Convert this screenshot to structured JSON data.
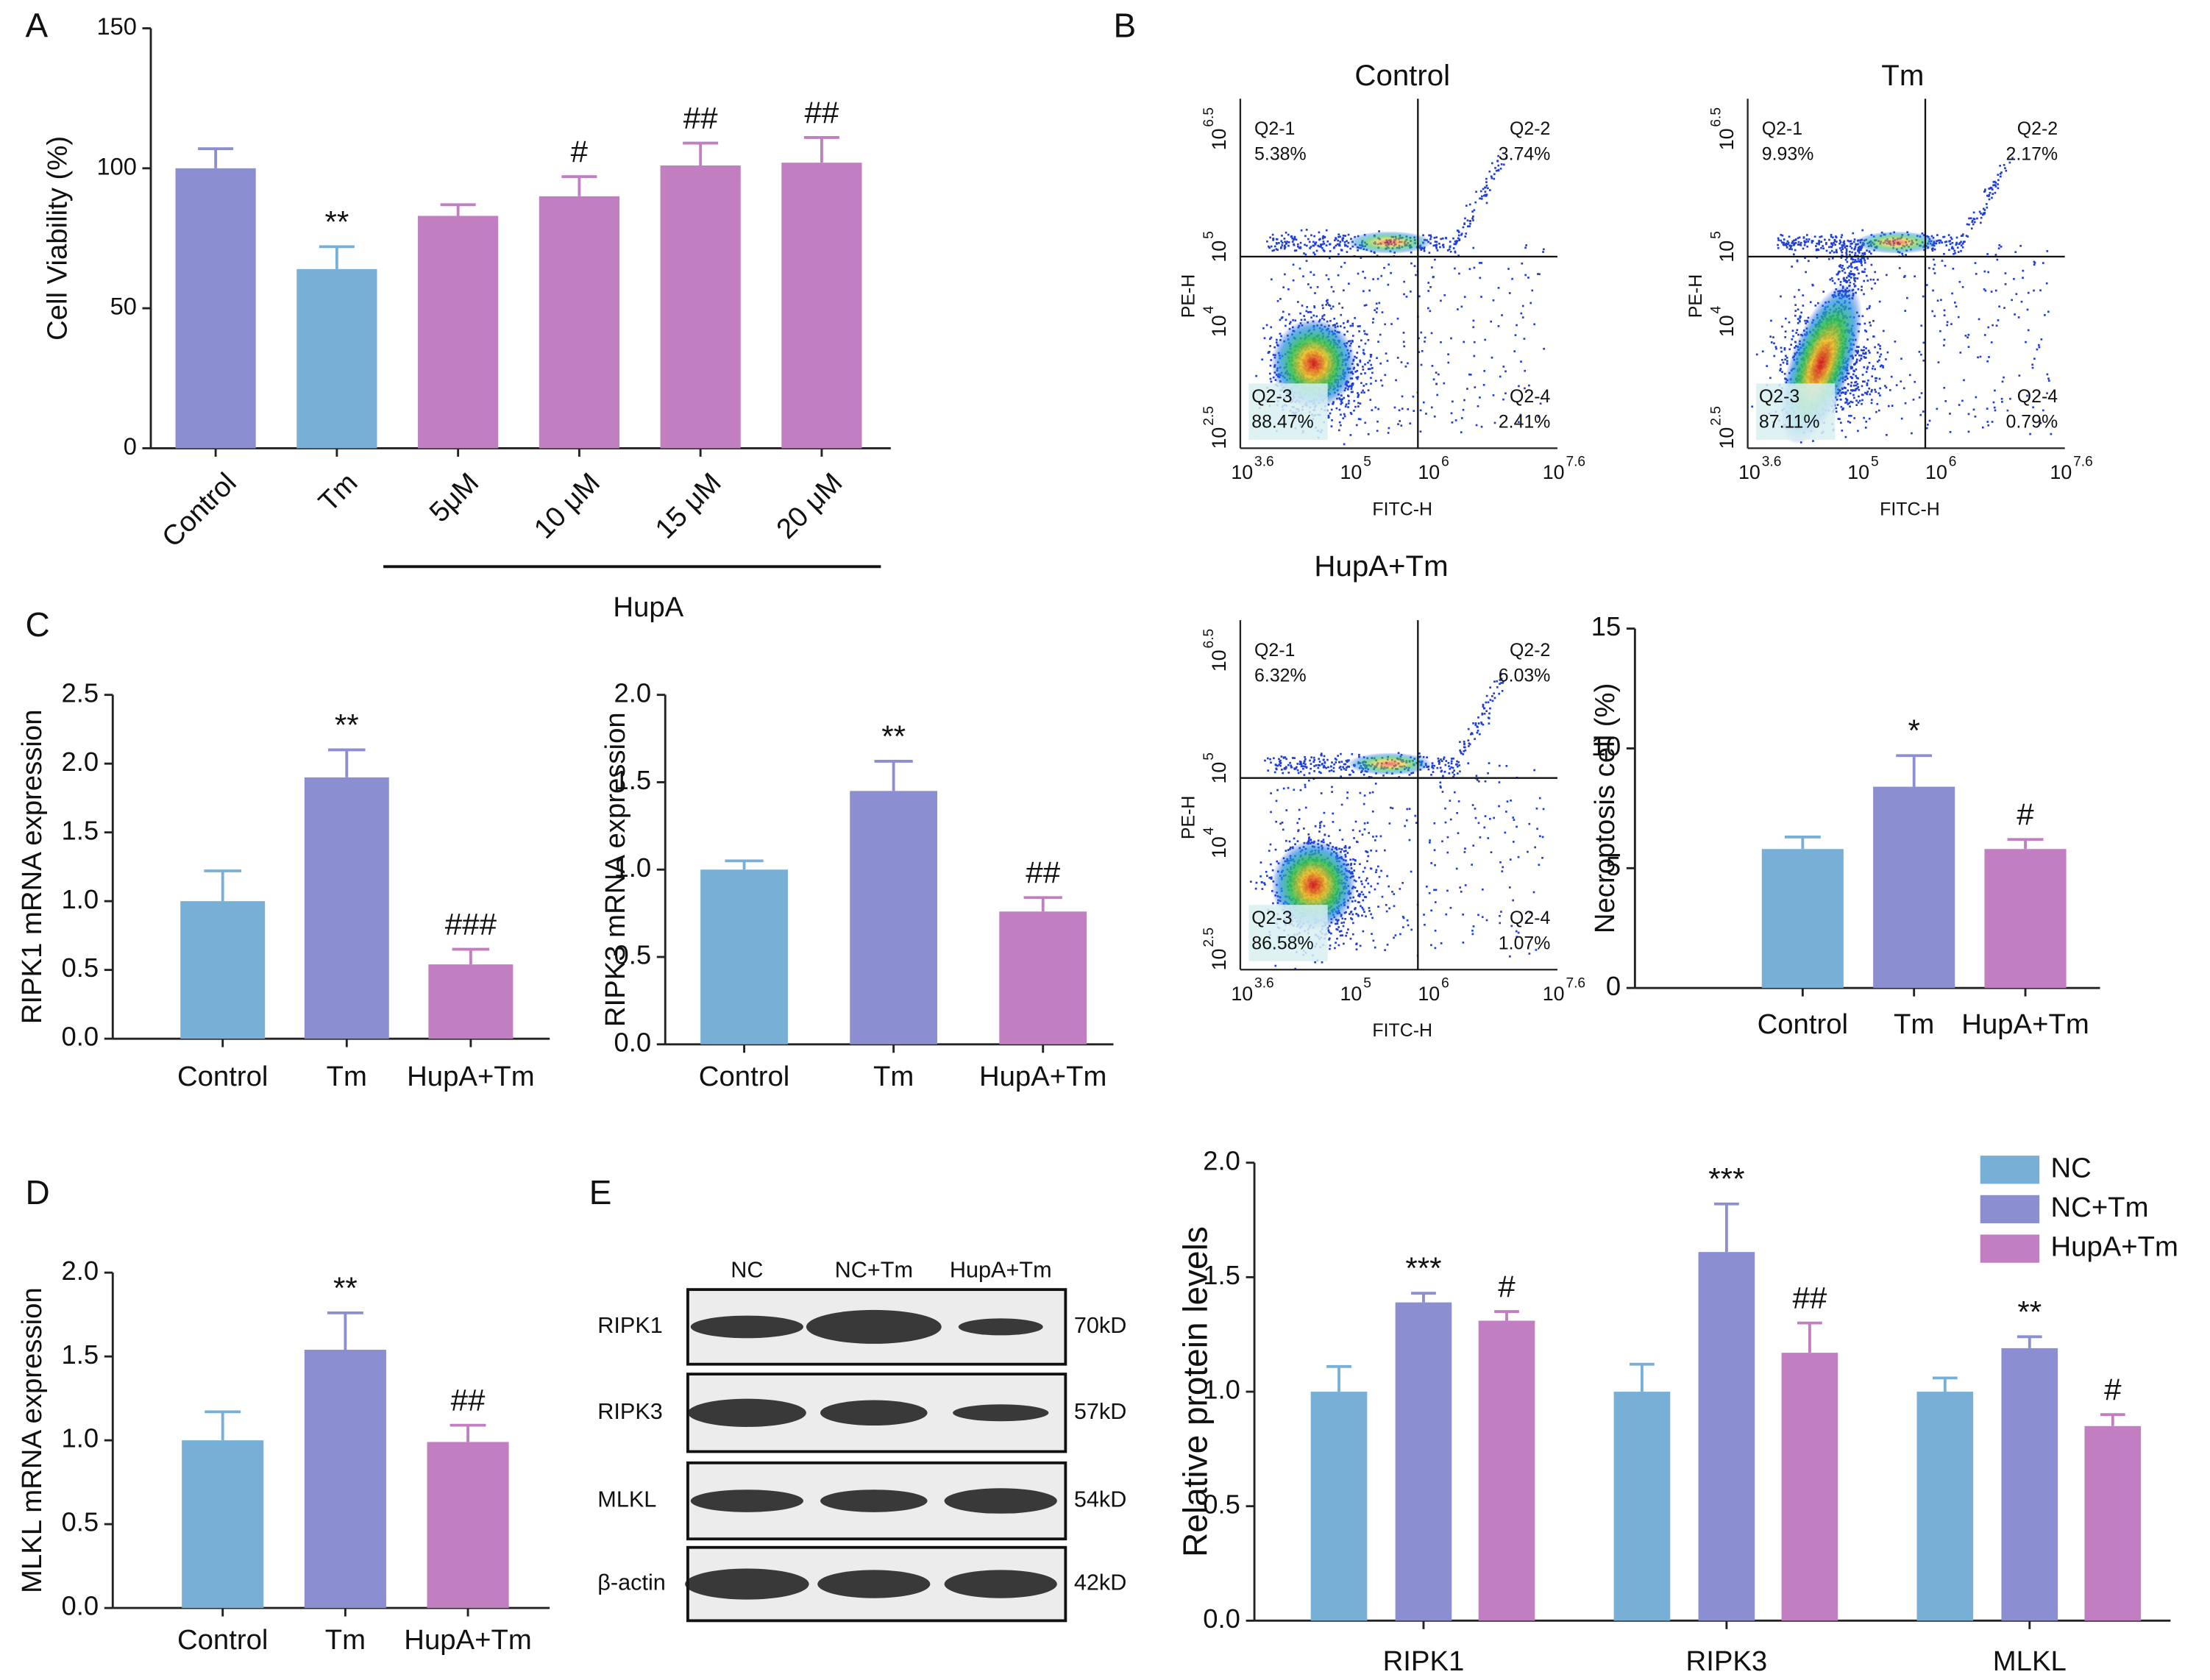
{
  "panel_labels": [
    "A",
    "B",
    "C",
    "D",
    "E"
  ],
  "chart_data": [
    {
      "type": "bar",
      "ylabel": "Cell Viability (%)",
      "group_label": "HupA",
      "categories": [
        "Control",
        "Tm",
        "5μM",
        "10 μM",
        "15 μM",
        "20 μM"
      ],
      "values": [
        100,
        64,
        83,
        90,
        101,
        102
      ],
      "errors": [
        7,
        8,
        4,
        7,
        8,
        9
      ],
      "colors": [
        "#8b8fd1",
        "#78afd6",
        "#c17fc2",
        "#c17fc2",
        "#c17fc2",
        "#c17fc2"
      ],
      "annotations": [
        {
          "index": 1,
          "text": "**"
        },
        {
          "index": 3,
          "text": "#"
        },
        {
          "index": 4,
          "text": "##"
        },
        {
          "index": 5,
          "text": "##"
        }
      ],
      "ylim": [
        0,
        150
      ],
      "yticks": [
        0,
        50,
        100,
        150
      ]
    },
    {
      "type": "bar",
      "ylabel": "RIPK1 mRNA expression",
      "categories": [
        "Control",
        "Tm",
        "HupA+Tm"
      ],
      "values": [
        1.0,
        1.9,
        0.54
      ],
      "errors": [
        0.22,
        0.2,
        0.11
      ],
      "colors": [
        "#78afd6",
        "#8b8fd1",
        "#c17fc2"
      ],
      "annotations": [
        {
          "index": 1,
          "text": "**"
        },
        {
          "index": 2,
          "text": "###"
        }
      ],
      "ylim": [
        0,
        2.5
      ],
      "yticks": [
        {
          "value": 0,
          "label": "0.0"
        },
        {
          "value": 0.5,
          "label": "0.5"
        },
        {
          "value": 1,
          "label": "1.0"
        },
        {
          "value": 1.5,
          "label": "1.5"
        },
        {
          "value": 2,
          "label": "2.0"
        },
        {
          "value": 2.5,
          "label": "2.5"
        }
      ]
    },
    {
      "type": "bar",
      "ylabel": "RIPK3 mRNA expression",
      "categories": [
        "Control",
        "Tm",
        "HupA+Tm"
      ],
      "values": [
        1.0,
        1.45,
        0.76
      ],
      "errors": [
        0.05,
        0.17,
        0.08
      ],
      "colors": [
        "#78afd6",
        "#8b8fd1",
        "#c17fc2"
      ],
      "annotations": [
        {
          "index": 1,
          "text": "**"
        },
        {
          "index": 2,
          "text": "##"
        }
      ],
      "ylim": [
        0,
        2
      ],
      "yticks": [
        {
          "value": 0,
          "label": "0.0"
        },
        {
          "value": 0.5,
          "label": "0.5"
        },
        {
          "value": 1,
          "label": "1.0"
        },
        {
          "value": 1.5,
          "label": "1.5"
        },
        {
          "value": 2,
          "label": "2.0"
        }
      ]
    },
    {
      "type": "bar",
      "ylabel": "Necroptosis cell (%)",
      "categories": [
        "Control",
        "Tm",
        "HupA+Tm"
      ],
      "values": [
        5.8,
        8.4,
        5.8
      ],
      "errors": [
        0.5,
        1.3,
        0.4
      ],
      "colors": [
        "#78afd6",
        "#8b8fd1",
        "#c17fc2"
      ],
      "annotations": [
        {
          "index": 1,
          "text": "*"
        },
        {
          "index": 2,
          "text": "#"
        }
      ],
      "ylim": [
        0,
        15
      ],
      "yticks": [
        0,
        5,
        10,
        15
      ]
    },
    {
      "type": "bar",
      "ylabel": "MLKL mRNA expression",
      "categories": [
        "Control",
        "Tm",
        "HupA+Tm"
      ],
      "values": [
        1.0,
        1.54,
        0.99
      ],
      "errors": [
        0.17,
        0.22,
        0.1
      ],
      "colors": [
        "#78afd6",
        "#8b8fd1",
        "#c17fc2"
      ],
      "annotations": [
        {
          "index": 1,
          "text": "**"
        },
        {
          "index": 2,
          "text": "##"
        }
      ],
      "ylim": [
        0,
        2
      ],
      "yticks": [
        {
          "value": 0,
          "label": "0.0"
        },
        {
          "value": 0.5,
          "label": "0.5"
        },
        {
          "value": 1,
          "label": "1.0"
        },
        {
          "value": 1.5,
          "label": "1.5"
        },
        {
          "value": 2,
          "label": "2.0"
        }
      ]
    },
    {
      "type": "grouped_bar",
      "ylabel": "Relative protein levels",
      "categories": [
        "RIPK1",
        "RIPK3",
        "MLKL"
      ],
      "series": [
        {
          "name": "NC",
          "color": "#78afd6",
          "values": [
            1.0,
            1.0,
            1.0
          ],
          "errors": [
            0.11,
            0.12,
            0.06
          ],
          "annotations": []
        },
        {
          "name": "NC+Tm",
          "color": "#8b8fd1",
          "values": [
            1.39,
            1.61,
            1.19
          ],
          "errors": [
            0.04,
            0.21,
            0.05
          ],
          "annotations": [
            {
              "index": 0,
              "text": "***"
            },
            {
              "index": 1,
              "text": "***"
            },
            {
              "index": 2,
              "text": "**"
            }
          ]
        },
        {
          "name": "HupA+Tm",
          "color": "#c17fc2",
          "values": [
            1.31,
            1.17,
            0.85
          ],
          "errors": [
            0.04,
            0.13,
            0.05
          ],
          "annotations": [
            {
              "index": 0,
              "text": "#"
            },
            {
              "index": 1,
              "text": "##"
            },
            {
              "index": 2,
              "text": "#"
            }
          ]
        }
      ],
      "ylim": [
        0,
        2
      ],
      "yticks": [
        {
          "value": 0,
          "label": "0.0"
        },
        {
          "value": 0.5,
          "label": "0.5"
        },
        {
          "value": 1,
          "label": "1.0"
        },
        {
          "value": 1.5,
          "label": "1.5"
        },
        {
          "value": 2,
          "label": "2.0"
        }
      ],
      "legend": "top-right"
    }
  ],
  "flow_axes": {
    "x_label": "FITC-H",
    "y_label": "PE-H",
    "x_ticks": [
      {
        "base": "10",
        "exp": "3.6"
      },
      {
        "base": "10",
        "exp": "5"
      },
      {
        "base": "10",
        "exp": "6"
      },
      {
        "base": "10",
        "exp": "7.6"
      }
    ],
    "y_ticks": [
      {
        "base": "10",
        "exp": "2.5"
      },
      {
        "base": "10",
        "exp": "4"
      },
      {
        "base": "10",
        "exp": "5"
      },
      {
        "base": "10",
        "exp": "6.5"
      }
    ]
  },
  "flow_plots": [
    {
      "title": "Control",
      "quadrants": [
        {
          "name": "Q2-1",
          "percent": "5.38%"
        },
        {
          "name": "Q2-2",
          "percent": "3.74%"
        },
        {
          "name": "Q2-3",
          "percent": "88.47%"
        },
        {
          "name": "Q2-4",
          "percent": "2.41%"
        }
      ]
    },
    {
      "title": "Tm",
      "quadrants": [
        {
          "name": "Q2-1",
          "percent": "9.93%"
        },
        {
          "name": "Q2-2",
          "percent": "2.17%"
        },
        {
          "name": "Q2-3",
          "percent": "87.11%"
        },
        {
          "name": "Q2-4",
          "percent": "0.79%"
        }
      ]
    },
    {
      "title": "HupA+Tm",
      "quadrants": [
        {
          "name": "Q2-1",
          "percent": "6.32%"
        },
        {
          "name": "Q2-2",
          "percent": "6.03%"
        },
        {
          "name": "Q2-3",
          "percent": "86.58%"
        },
        {
          "name": "Q2-4",
          "percent": "1.07%"
        }
      ]
    }
  ],
  "blot": {
    "lanes": [
      "NC",
      "NC+Tm",
      "HupA+Tm"
    ],
    "rows": [
      {
        "name": "RIPK1",
        "size": "70kD"
      },
      {
        "name": "RIPK3",
        "size": "57kD"
      },
      {
        "name": "MLKL",
        "size": "54kD"
      },
      {
        "name": "β-actin",
        "size": "42kD"
      }
    ]
  }
}
